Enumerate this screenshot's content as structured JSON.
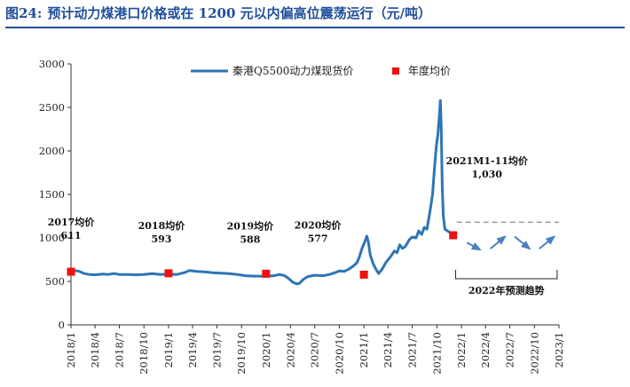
{
  "figure": {
    "label": "图24:",
    "title": "预计动力煤港口价格或在 1200 元以内偏高位震荡运行（元/吨）"
  },
  "chart_data": {
    "type": "line",
    "title": "预计动力煤港口价格或在 1200 元以内偏高位震荡运行（元/吨）",
    "ylim": [
      0,
      3000
    ],
    "y_ticks": [
      0,
      500,
      1000,
      1500,
      2000,
      2500,
      3000
    ],
    "x_range": [
      "2018/1",
      "2023/1"
    ],
    "x_ticks": [
      "2018/1",
      "2018/4",
      "2018/7",
      "2018/10",
      "2019/1",
      "2019/4",
      "2019/7",
      "2019/10",
      "2020/1",
      "2020/4",
      "2020/7",
      "2020/10",
      "2021/1",
      "2021/4",
      "2021/7",
      "2021/10",
      "2022/1",
      "2022/4",
      "2022/7",
      "2022/10",
      "2023/1"
    ],
    "legend_position": "top-center",
    "grid": false,
    "series": [
      {
        "name": "秦港Q5500动力煤现货价",
        "color": "#2e75b6",
        "points": [
          [
            "2018-01-01",
            612
          ],
          [
            "2018-01-15",
            625
          ],
          [
            "2018-02-01",
            615
          ],
          [
            "2018-02-20",
            590
          ],
          [
            "2018-03-10",
            580
          ],
          [
            "2018-04-01",
            575
          ],
          [
            "2018-05-01",
            585
          ],
          [
            "2018-05-20",
            580
          ],
          [
            "2018-06-10",
            590
          ],
          [
            "2018-07-01",
            580
          ],
          [
            "2018-08-01",
            580
          ],
          [
            "2018-09-01",
            575
          ],
          [
            "2018-10-01",
            580
          ],
          [
            "2018-11-01",
            590
          ],
          [
            "2018-12-01",
            580
          ],
          [
            "2019-01-01",
            585
          ],
          [
            "2019-02-01",
            580
          ],
          [
            "2019-03-01",
            600
          ],
          [
            "2019-03-20",
            625
          ],
          [
            "2019-04-15",
            615
          ],
          [
            "2019-05-15",
            610
          ],
          [
            "2019-06-15",
            600
          ],
          [
            "2019-07-15",
            595
          ],
          [
            "2019-08-15",
            590
          ],
          [
            "2019-09-15",
            580
          ],
          [
            "2019-10-15",
            565
          ],
          [
            "2019-11-15",
            560
          ],
          [
            "2019-12-15",
            560
          ],
          [
            "2020-01-01",
            560
          ],
          [
            "2020-02-01",
            565
          ],
          [
            "2020-02-20",
            580
          ],
          [
            "2020-03-10",
            565
          ],
          [
            "2020-03-25",
            535
          ],
          [
            "2020-04-10",
            490
          ],
          [
            "2020-04-25",
            470
          ],
          [
            "2020-05-05",
            478
          ],
          [
            "2020-05-20",
            525
          ],
          [
            "2020-06-05",
            555
          ],
          [
            "2020-07-01",
            570
          ],
          [
            "2020-08-01",
            565
          ],
          [
            "2020-08-25",
            580
          ],
          [
            "2020-09-15",
            600
          ],
          [
            "2020-10-01",
            620
          ],
          [
            "2020-10-20",
            615
          ],
          [
            "2020-11-05",
            640
          ],
          [
            "2020-11-20",
            670
          ],
          [
            "2020-12-05",
            710
          ],
          [
            "2020-12-15",
            780
          ],
          [
            "2020-12-25",
            880
          ],
          [
            "2021-01-05",
            960
          ],
          [
            "2021-01-12",
            1020
          ],
          [
            "2021-01-18",
            950
          ],
          [
            "2021-01-25",
            800
          ],
          [
            "2021-02-05",
            700
          ],
          [
            "2021-02-15",
            640
          ],
          [
            "2021-02-25",
            590
          ],
          [
            "2021-03-10",
            640
          ],
          [
            "2021-03-25",
            720
          ],
          [
            "2021-04-10",
            780
          ],
          [
            "2021-04-25",
            850
          ],
          [
            "2021-05-05",
            830
          ],
          [
            "2021-05-15",
            920
          ],
          [
            "2021-05-25",
            880
          ],
          [
            "2021-06-05",
            900
          ],
          [
            "2021-06-20",
            980
          ],
          [
            "2021-07-01",
            1010
          ],
          [
            "2021-07-15",
            1000
          ],
          [
            "2021-07-25",
            1080
          ],
          [
            "2021-08-05",
            1040
          ],
          [
            "2021-08-15",
            1120
          ],
          [
            "2021-08-25",
            1100
          ],
          [
            "2021-09-05",
            1300
          ],
          [
            "2021-09-15",
            1500
          ],
          [
            "2021-09-22",
            1800
          ],
          [
            "2021-09-29",
            2050
          ],
          [
            "2021-10-05",
            2200
          ],
          [
            "2021-10-10",
            2400
          ],
          [
            "2021-10-14",
            2580
          ],
          [
            "2021-10-17",
            2300
          ],
          [
            "2021-10-21",
            1600
          ],
          [
            "2021-10-25",
            1250
          ],
          [
            "2021-10-31",
            1100
          ],
          [
            "2021-11-10",
            1080
          ],
          [
            "2021-11-20",
            1060
          ],
          [
            "2021-11-30",
            1050
          ]
        ]
      },
      {
        "name": "年度均价",
        "color": "#ee1111",
        "points": [
          [
            "2018-01-01",
            611
          ],
          [
            "2019-01-01",
            593
          ],
          [
            "2020-01-01",
            588
          ],
          [
            "2021-01-01",
            577
          ],
          [
            "2021-12-01",
            1030
          ]
        ]
      }
    ],
    "forecast": {
      "reference_line_value": 1180,
      "reference_line_range": [
        "2021-12-01",
        "2023-01-01"
      ],
      "zigzag_points": [
        [
          "2022-01-01",
          980
        ],
        [
          "2022-04-01",
          830
        ],
        [
          "2022-07-01",
          1060
        ],
        [
          "2022-10-01",
          830
        ],
        [
          "2023-01-01",
          1060
        ]
      ],
      "color": "#4a7fc0"
    },
    "annotations": [
      {
        "id": "a2017",
        "lines": [
          "2017均价",
          "611"
        ],
        "anchor": [
          "2018-01-01",
          611
        ]
      },
      {
        "id": "a2018",
        "lines": [
          "2018均价",
          "593"
        ],
        "anchor": [
          "2019-01-01",
          593
        ]
      },
      {
        "id": "a2019",
        "lines": [
          "2019均价",
          "588"
        ],
        "anchor": [
          "2020-01-01",
          588
        ]
      },
      {
        "id": "a2020",
        "lines": [
          "2020均价",
          "577"
        ],
        "anchor": [
          "2021-01-01",
          577
        ]
      },
      {
        "id": "a2021",
        "lines": [
          "2021M1-11均价",
          "1,030"
        ],
        "anchor": [
          "2021-12-01",
          1030
        ]
      }
    ],
    "bracket_label": "2022年预测趋势"
  }
}
